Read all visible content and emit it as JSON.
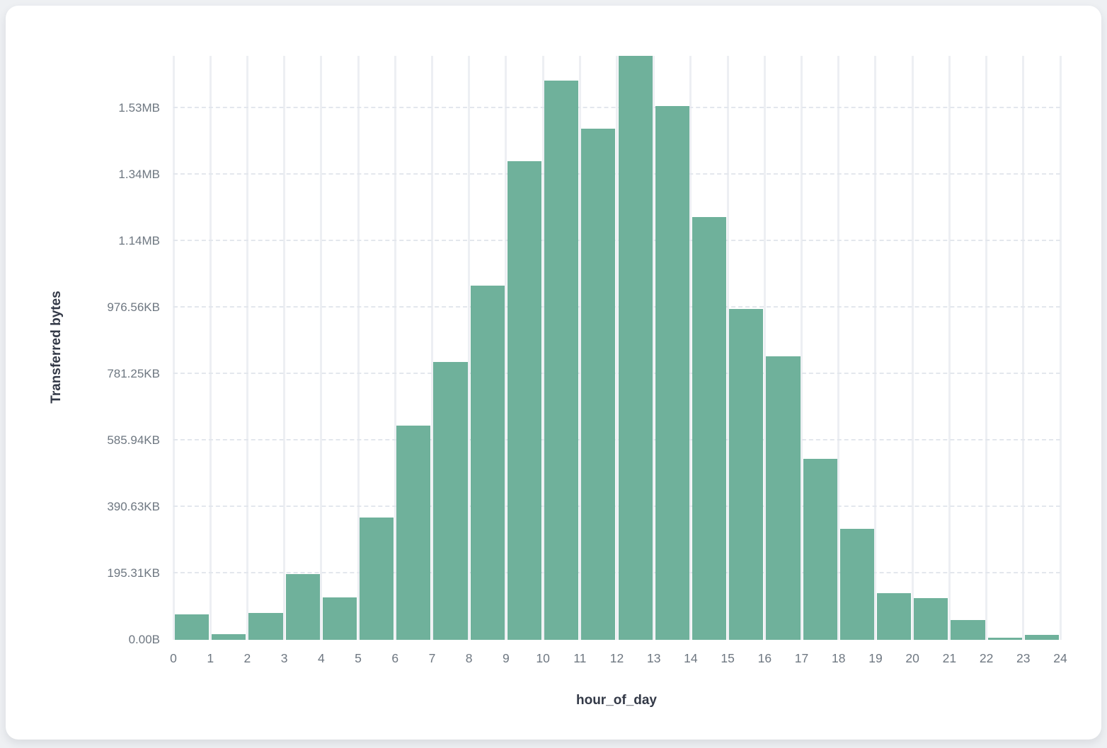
{
  "chart_data": {
    "type": "bar",
    "subtype": "histogram",
    "xlabel": "hour_of_day",
    "ylabel": "Transferred bytes",
    "categories": [
      0,
      1,
      2,
      3,
      4,
      5,
      6,
      7,
      8,
      9,
      10,
      11,
      12,
      13,
      14,
      15,
      16,
      17,
      18,
      19,
      20,
      21,
      22,
      23
    ],
    "values": [
      76000,
      18000,
      80000,
      197000,
      128000,
      369000,
      645000,
      835000,
      1065000,
      1440000,
      1682000,
      1537000,
      1757000,
      1606000,
      1273000,
      995000,
      853000,
      545000,
      333000,
      140000,
      126000,
      59000,
      7000,
      14000
    ],
    "values_unit": "bytes",
    "x_ticks": [
      "0",
      "1",
      "2",
      "3",
      "4",
      "5",
      "6",
      "7",
      "8",
      "9",
      "10",
      "11",
      "12",
      "13",
      "14",
      "15",
      "16",
      "17",
      "18",
      "19",
      "20",
      "21",
      "22",
      "23",
      "24"
    ],
    "y_ticks": [
      {
        "bytes": 0,
        "label": "0.00B"
      },
      {
        "bytes": 200000,
        "label": "195.31KB"
      },
      {
        "bytes": 400000,
        "label": "390.63KB"
      },
      {
        "bytes": 600000,
        "label": "585.94KB"
      },
      {
        "bytes": 800000,
        "label": "781.25KB"
      },
      {
        "bytes": 1000000,
        "label": "976.56KB"
      },
      {
        "bytes": 1200000,
        "label": "1.14MB"
      },
      {
        "bytes": 1400000,
        "label": "1.34MB"
      },
      {
        "bytes": 1600000,
        "label": "1.53MB"
      }
    ],
    "ylim": [
      0,
      1757000
    ],
    "xlim": [
      0,
      24
    ],
    "grid": true,
    "legend_position": "none",
    "bar_color": "#6fb19b"
  },
  "colors": {
    "page_background": "#eef0f3",
    "card_background": "#ffffff",
    "vertical_grid": "#edeff3",
    "horizontal_grid": "#e3e7ed",
    "tick_text": "#6e7781",
    "axis_title_text": "#333947",
    "bar_fill": "#6fb19b"
  }
}
